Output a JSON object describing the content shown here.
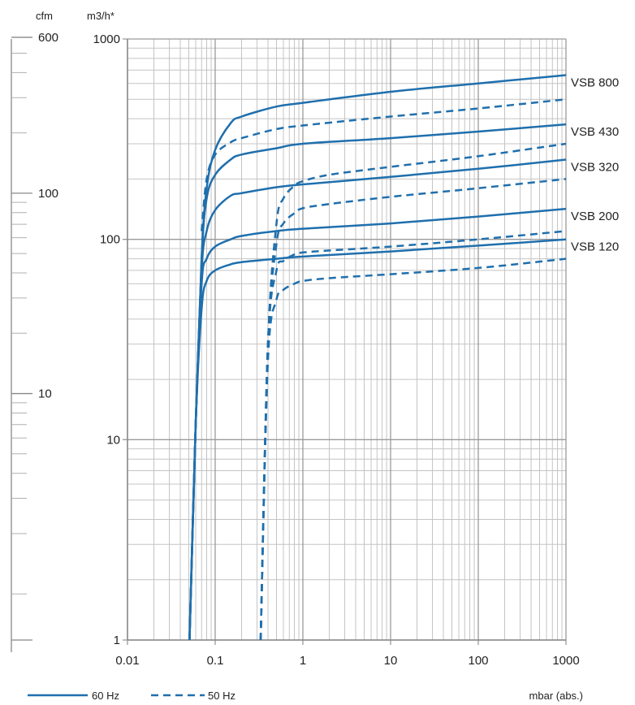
{
  "chart_data": {
    "type": "line",
    "title": "",
    "x_scale": "log",
    "y_scale": "log",
    "xlim": [
      0.01,
      1000
    ],
    "ylim": [
      1,
      1000
    ],
    "y2lim": [
      0.5886,
      588.6
    ],
    "xlabel": "mbar (abs.)",
    "ylabel": "m3/h*",
    "y2label": "cfm",
    "x_ticks": [
      "0.01",
      "0.1",
      "1",
      "10",
      "100",
      "1000"
    ],
    "y_ticks": [
      "1",
      "10",
      "100",
      "1000"
    ],
    "y2_ticks": [
      "10",
      "100",
      "600"
    ],
    "grid": true,
    "colors": {
      "line": "#1f6fad",
      "grid": "#c4c4c4",
      "axis": "#888888"
    },
    "legend": {
      "position": "bottom-left",
      "entries": [
        {
          "label": "60 Hz",
          "style": "solid"
        },
        {
          "label": "50 Hz",
          "style": "dashed"
        }
      ]
    },
    "series": [
      {
        "name": "VSB 800",
        "frequency": "60 Hz",
        "x": [
          0.051,
          0.06,
          0.07,
          0.08,
          0.1,
          0.15,
          0.2,
          0.5,
          1,
          10,
          100,
          1000
        ],
        "y": [
          1,
          12,
          80,
          180,
          280,
          380,
          410,
          460,
          480,
          545,
          600,
          660
        ]
      },
      {
        "name": "VSB 800",
        "frequency": "50 Hz",
        "x": [
          0.07,
          0.08,
          0.1,
          0.15,
          0.2,
          0.5,
          1,
          10,
          100,
          1000
        ],
        "y": [
          110,
          200,
          265,
          305,
          320,
          355,
          370,
          410,
          450,
          500
        ]
      },
      {
        "name": "VSB 430",
        "frequency": "60 Hz",
        "x": [
          0.051,
          0.06,
          0.07,
          0.08,
          0.1,
          0.15,
          0.2,
          0.5,
          1,
          10,
          100,
          1000
        ],
        "y": [
          1,
          12,
          80,
          160,
          210,
          250,
          265,
          285,
          300,
          320,
          345,
          375
        ]
      },
      {
        "name": "VSB 430",
        "frequency": "50 Hz",
        "x": [
          0.33,
          0.4,
          0.5,
          0.6,
          0.8,
          1,
          2,
          10,
          100,
          1000
        ],
        "y": [
          1,
          30,
          120,
          160,
          185,
          195,
          210,
          230,
          260,
          300
        ]
      },
      {
        "name": "VSB 320",
        "frequency": "60 Hz",
        "x": [
          0.051,
          0.06,
          0.07,
          0.08,
          0.1,
          0.15,
          0.2,
          0.5,
          1,
          10,
          100,
          1000
        ],
        "y": [
          1,
          12,
          70,
          110,
          140,
          165,
          170,
          182,
          188,
          205,
          225,
          250
        ]
      },
      {
        "name": "VSB 320",
        "frequency": "50 Hz",
        "x": [
          0.33,
          0.4,
          0.5,
          0.6,
          0.8,
          1,
          2,
          10,
          100,
          1000
        ],
        "y": [
          1,
          30,
          95,
          120,
          135,
          143,
          150,
          163,
          180,
          200
        ]
      },
      {
        "name": "VSB 200",
        "frequency": "60 Hz",
        "x": [
          0.051,
          0.06,
          0.07,
          0.08,
          0.1,
          0.15,
          0.2,
          0.5,
          1,
          10,
          100,
          1000
        ],
        "y": [
          1,
          12,
          60,
          80,
          92,
          100,
          104,
          110,
          113,
          120,
          130,
          142
        ]
      },
      {
        "name": "VSB 200",
        "frequency": "50 Hz",
        "x": [
          0.33,
          0.4,
          0.5,
          0.6,
          0.8,
          1,
          2,
          10,
          100,
          1000
        ],
        "y": [
          1,
          30,
          70,
          78,
          84,
          86,
          88,
          92,
          100,
          110
        ]
      },
      {
        "name": "VSB 120",
        "frequency": "60 Hz",
        "x": [
          0.051,
          0.06,
          0.07,
          0.08,
          0.1,
          0.15,
          0.2,
          0.5,
          1,
          10,
          100,
          1000
        ],
        "y": [
          1,
          12,
          45,
          62,
          70,
          75,
          77,
          80,
          82,
          87,
          93,
          100
        ]
      },
      {
        "name": "VSB 120",
        "frequency": "50 Hz",
        "x": [
          0.33,
          0.4,
          0.5,
          0.6,
          0.8,
          1,
          2,
          10,
          100,
          1000
        ],
        "y": [
          1,
          25,
          50,
          56,
          60,
          62,
          64,
          67,
          72,
          80
        ]
      }
    ],
    "curve_labels": [
      "VSB 800",
      "VSB 430",
      "VSB 320",
      "VSB 200",
      "VSB 120"
    ]
  }
}
